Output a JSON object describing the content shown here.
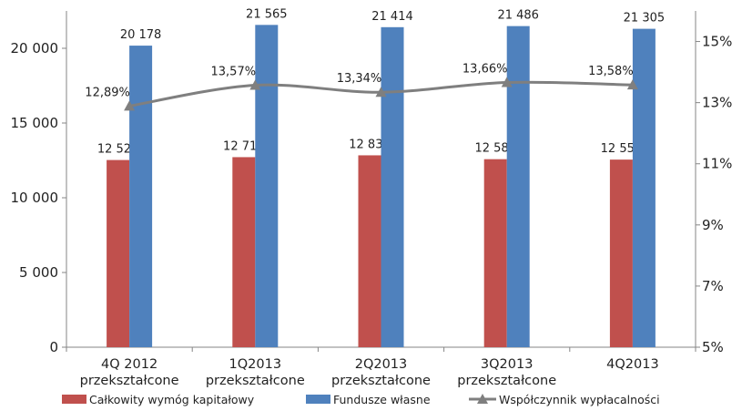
{
  "chart_data": {
    "type": "bar",
    "categories": [
      [
        "4Q 2012",
        "przekształcone"
      ],
      [
        "1Q2013",
        "przekształcone"
      ],
      [
        "2Q2013",
        "przekształcone"
      ],
      [
        "3Q2013",
        "przekształcone"
      ],
      [
        "4Q2013"
      ]
    ],
    "series": [
      {
        "name": "Całkowity wymóg kapitałowy",
        "kind": "bar",
        "axis": "left",
        "color": "#C0504D",
        "values": [
          12525,
          12717,
          12839,
          12581,
          12552
        ],
        "labels": [
          "12 525",
          "12 717",
          "12 839",
          "12 581",
          "12 552"
        ]
      },
      {
        "name": "Fundusze własne",
        "kind": "bar",
        "axis": "left",
        "color": "#4F81BD",
        "values": [
          20178,
          21565,
          21414,
          21486,
          21305
        ],
        "labels": [
          "20 178",
          "21 565",
          "21 414",
          "21 486",
          "21 305"
        ]
      },
      {
        "name": "Współczynnik wypłacalności",
        "kind": "line",
        "axis": "right",
        "color": "#7F7F7F",
        "values": [
          12.89,
          13.57,
          13.34,
          13.66,
          13.58
        ],
        "labels": [
          "12,89%",
          "13,57%",
          "13,34%",
          "13,66%",
          "13,58%"
        ]
      }
    ],
    "y_left": {
      "ylim": [
        0,
        22500
      ],
      "ticks": [
        0,
        5000,
        10000,
        15000,
        20000
      ],
      "tick_labels": [
        "0",
        "5 000",
        "10 000",
        "15 000",
        "20 000"
      ]
    },
    "y_right": {
      "ylim": [
        5,
        16
      ],
      "ticks": [
        5,
        7,
        9,
        11,
        13,
        15
      ],
      "tick_labels": [
        "5%",
        "7%",
        "9%",
        "11%",
        "13%",
        "15%"
      ]
    },
    "grid": false,
    "legend": "bottom"
  }
}
